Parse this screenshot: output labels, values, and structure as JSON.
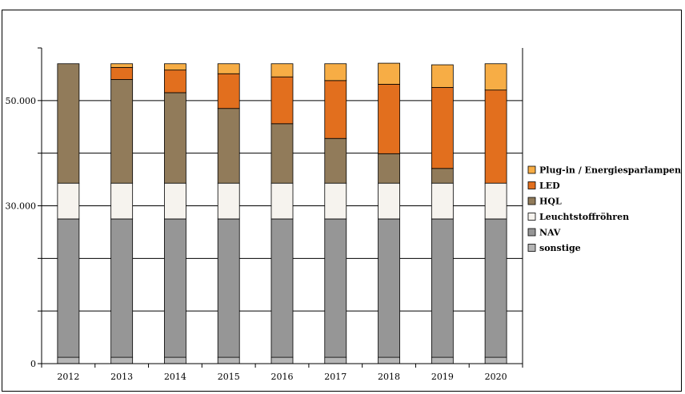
{
  "chart_data": {
    "type": "bar",
    "stacked": true,
    "categories": [
      "2012",
      "2013",
      "2014",
      "2015",
      "2016",
      "2017",
      "2018",
      "2019",
      "2020"
    ],
    "series": [
      {
        "name": "sonstige",
        "color": "#b5b5b5",
        "values": [
          1200,
          1200,
          1200,
          1200,
          1200,
          1200,
          1200,
          1200,
          1200
        ]
      },
      {
        "name": "NAV",
        "color": "#969696",
        "values": [
          26300,
          26300,
          26300,
          26300,
          26300,
          26300,
          26300,
          26300,
          26300
        ]
      },
      {
        "name": "Leuchtstoffröhren",
        "color": "#f6f3ee",
        "values": [
          6800,
          6800,
          6800,
          6800,
          6800,
          6800,
          6800,
          6800,
          6800
        ]
      },
      {
        "name": "HQL",
        "color": "#917b5a",
        "values": [
          22700,
          19700,
          17200,
          14200,
          11300,
          8500,
          5600,
          2800,
          0
        ]
      },
      {
        "name": "LED",
        "color": "#e26f1e",
        "values": [
          0,
          2300,
          4300,
          6600,
          8900,
          11000,
          13200,
          15400,
          17700
        ]
      },
      {
        "name": "Plug-in / Energiesparlampen",
        "color": "#f7ad45",
        "values": [
          0,
          700,
          1200,
          1900,
          2500,
          3200,
          4000,
          4300,
          5000
        ]
      }
    ],
    "legend_order": [
      "Plug-in / Energiesparlampen",
      "LED",
      "HQL",
      "Leuchtstoffröhren",
      "NAV",
      "sonstige"
    ],
    "y_tick_labels": [
      {
        "value": 0,
        "label": "0"
      },
      {
        "value": 30000,
        "label": "30.000"
      },
      {
        "value": 50000,
        "label": "50.000"
      }
    ],
    "y_gridlines": [
      10000,
      20000,
      30000,
      40000,
      50000
    ],
    "ylim": [
      0,
      60000
    ],
    "title": "",
    "xlabel": "",
    "ylabel": "",
    "legend_position": "right",
    "grid": true
  }
}
